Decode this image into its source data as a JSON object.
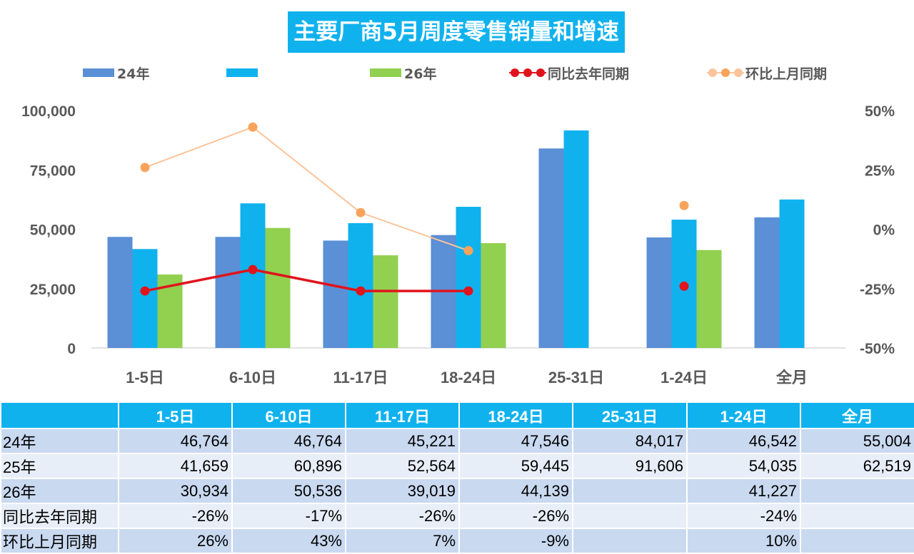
{
  "chart_data": {
    "type": "bar",
    "title": "主要厂商5月周度零售销量和增速",
    "categories": [
      "1-5日",
      "6-10日",
      "11-17日",
      "18-24日",
      "25-31日",
      "1-24日",
      "全月"
    ],
    "series": [
      {
        "name": "24年",
        "type": "bar",
        "axis": "left",
        "color": "#5b8fd6",
        "values": [
          46764,
          46764,
          45221,
          47546,
          84017,
          46542,
          55004
        ]
      },
      {
        "name": "",
        "type": "bar",
        "axis": "left",
        "color": "#10b2ee",
        "values": [
          41659,
          60896,
          52564,
          59445,
          91606,
          54035,
          62519
        ]
      },
      {
        "name": "26年",
        "type": "bar",
        "axis": "left",
        "color": "#92d050",
        "values": [
          30934,
          50536,
          39019,
          44139,
          null,
          41227,
          null
        ]
      },
      {
        "name": "同比去年同期",
        "type": "line",
        "axis": "right",
        "color": "#e0141c",
        "values": [
          -0.26,
          -0.17,
          -0.26,
          -0.26,
          null,
          -0.24,
          null
        ]
      },
      {
        "name": "环比上月同期",
        "type": "line",
        "axis": "right",
        "color": "#f7a35c",
        "line_color": "#fbc49a",
        "values": [
          0.26,
          0.43,
          0.07,
          -0.09,
          null,
          0.1,
          null
        ]
      }
    ],
    "ylim": [
      0,
      100000
    ],
    "yticks": [
      "100,000",
      "75,000",
      "50,000",
      "25,000",
      "0"
    ],
    "ytick_values": [
      100000,
      75000,
      50000,
      25000,
      0
    ],
    "y2lim": [
      -0.5,
      0.5
    ],
    "y2ticks": [
      "50%",
      "25%",
      "0%",
      "-25%",
      "-50%"
    ],
    "y2tick_values": [
      0.5,
      0.25,
      0,
      -0.25,
      -0.5
    ],
    "legend_position": "top",
    "grid": false
  },
  "table": {
    "headers": [
      "",
      "1-5日",
      "6-10日",
      "11-17日",
      "18-24日",
      "25-31日",
      "1-24日",
      "全月"
    ],
    "rows": [
      [
        "24年",
        "46,764",
        "46,764",
        "45,221",
        "47,546",
        "84,017",
        "46,542",
        "55,004"
      ],
      [
        "25年",
        "41,659",
        "60,896",
        "52,564",
        "59,445",
        "91,606",
        "54,035",
        "62,519"
      ],
      [
        "26年",
        "30,934",
        "50,536",
        "39,019",
        "44,139",
        "",
        "41,227",
        ""
      ],
      [
        "同比去年同期",
        "-26%",
        "-17%",
        "-26%",
        "-26%",
        "",
        "-24%",
        ""
      ],
      [
        "环比上月同期",
        "26%",
        "43%",
        "7%",
        "-9%",
        "",
        "10%",
        ""
      ]
    ]
  }
}
